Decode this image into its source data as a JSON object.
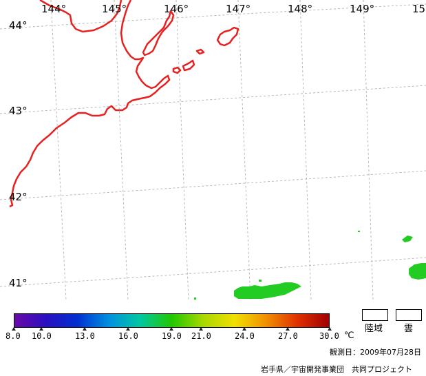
{
  "map": {
    "longitude_labels": [
      "144°",
      "145°",
      "146°",
      "147°",
      "148°",
      "149°",
      "15"
    ],
    "latitude_labels": [
      "44°",
      "43°",
      "42°",
      "41°"
    ],
    "colors": {
      "coastline": "#e82020",
      "graticule": "#b8b8b8",
      "sst_patch": "#22cc22"
    }
  },
  "colorbar": {
    "ticks": [
      "8.0",
      "10.0",
      "13.0",
      "16.0",
      "19.0",
      "21.0",
      "24.0",
      "27.0",
      "30.0"
    ],
    "unit": "℃",
    "colors": [
      "#6a0aa8",
      "#2a10c0",
      "#0030d0",
      "#0090e0",
      "#00c8a0",
      "#20c800",
      "#a8d800",
      "#f0e000",
      "#f09000",
      "#e03000",
      "#a00000"
    ]
  },
  "legend": {
    "land_label": "陸域",
    "cloud_label": "雲"
  },
  "observation_date": "観測日：2009年07月28日",
  "credit": "岩手県／宇宙開発事業団　共同プロジェクト"
}
